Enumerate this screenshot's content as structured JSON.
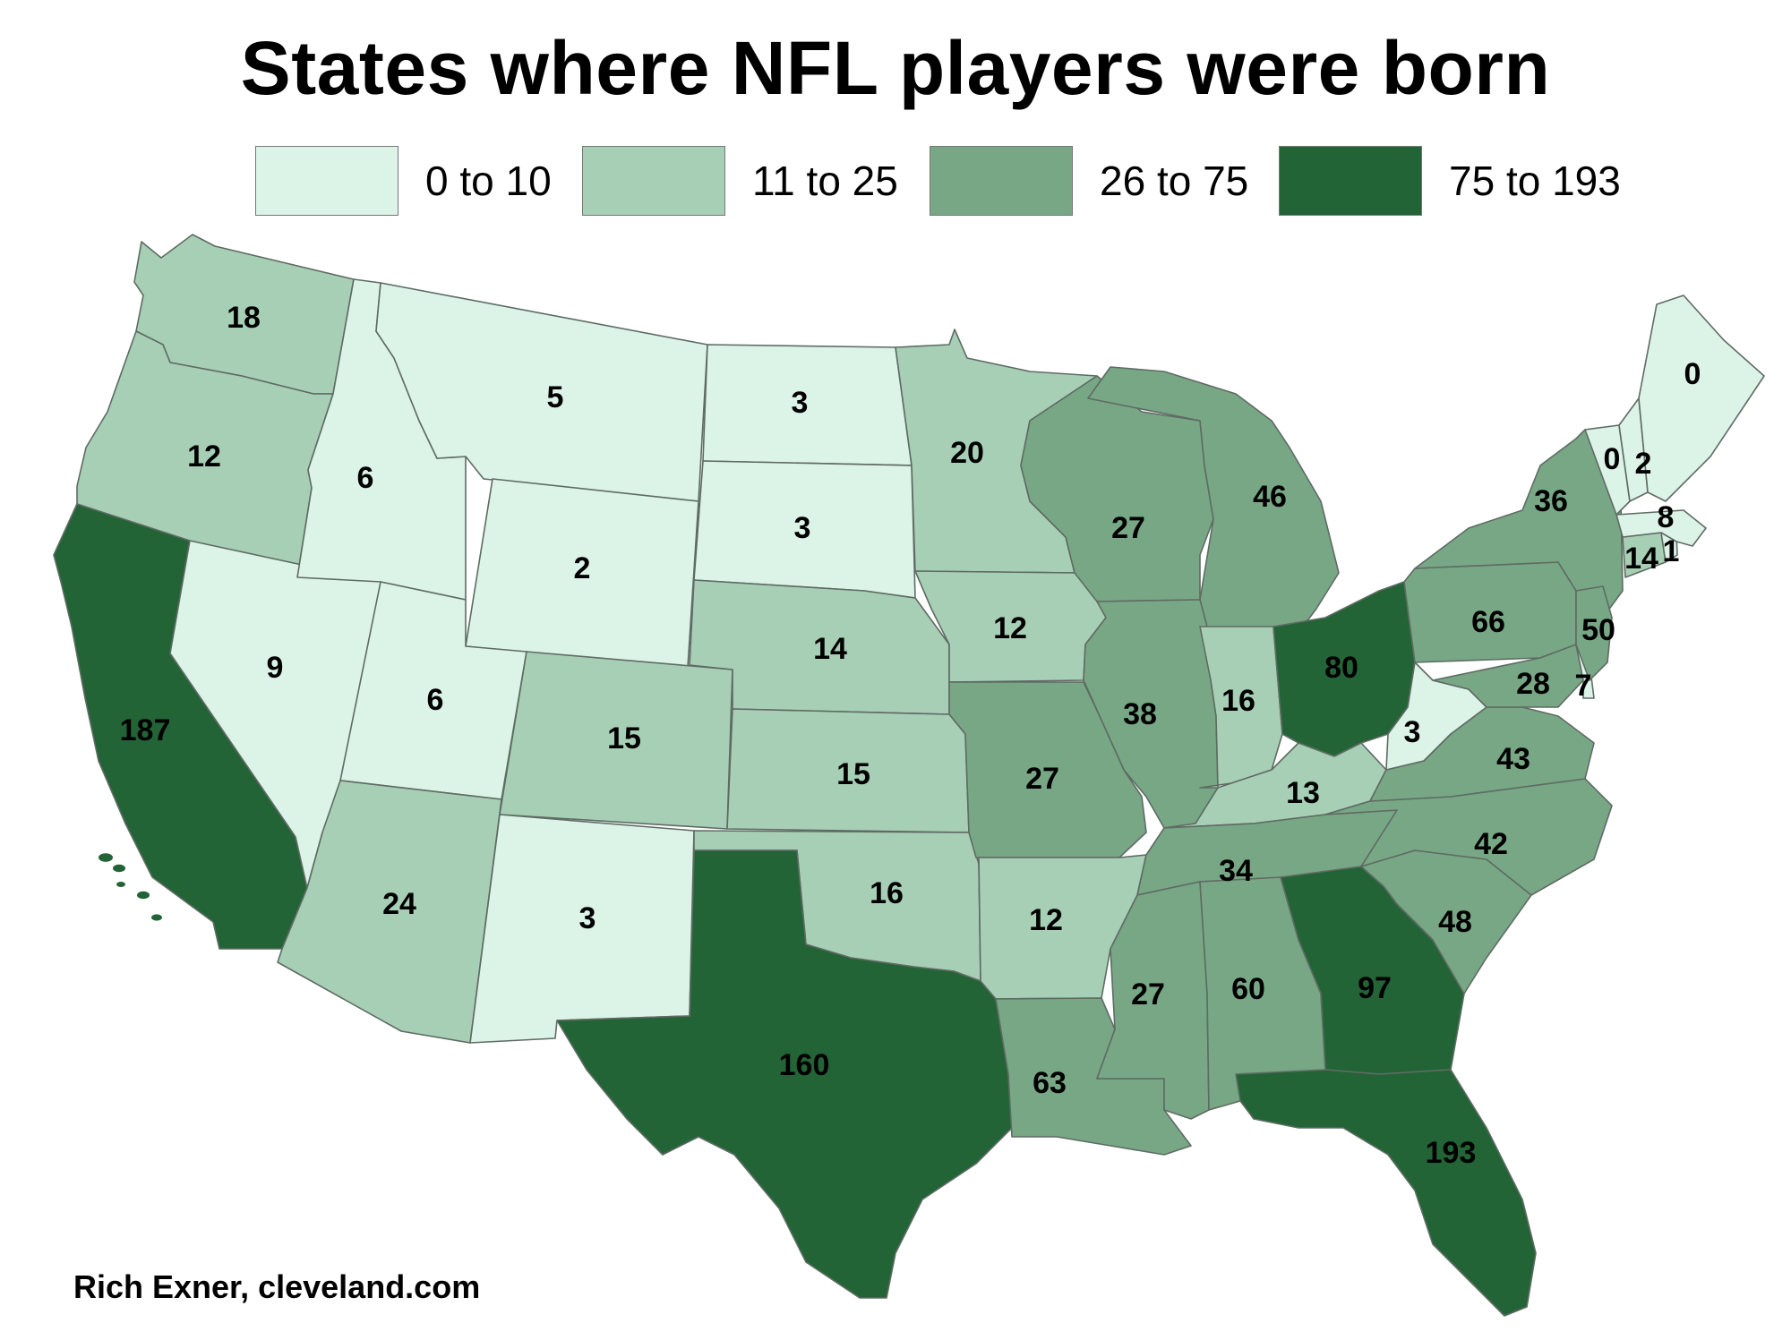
{
  "title": "States where NFL players were born",
  "credit": "Rich Exner, cleveland.com",
  "legend": [
    {
      "label": "0 to 10",
      "color": "#dcf3e8"
    },
    {
      "label": "11 to 25",
      "color": "#a7cfb5"
    },
    {
      "label": "26 to 75",
      "color": "#78a785"
    },
    {
      "label": "75 to 193",
      "color": "#236436"
    }
  ],
  "states": [
    {
      "id": "WA",
      "value": 18,
      "bin": 1
    },
    {
      "id": "OR",
      "value": 12,
      "bin": 1
    },
    {
      "id": "CA",
      "value": 187,
      "bin": 3
    },
    {
      "id": "NV",
      "value": 9,
      "bin": 0
    },
    {
      "id": "ID",
      "value": 6,
      "bin": 0
    },
    {
      "id": "MT",
      "value": 5,
      "bin": 0
    },
    {
      "id": "WY",
      "value": 2,
      "bin": 0
    },
    {
      "id": "UT",
      "value": 6,
      "bin": 0
    },
    {
      "id": "AZ",
      "value": 24,
      "bin": 1
    },
    {
      "id": "CO",
      "value": 15,
      "bin": 1
    },
    {
      "id": "NM",
      "value": 3,
      "bin": 0
    },
    {
      "id": "ND",
      "value": 3,
      "bin": 0
    },
    {
      "id": "SD",
      "value": 3,
      "bin": 0
    },
    {
      "id": "NE",
      "value": 14,
      "bin": 1
    },
    {
      "id": "KS",
      "value": 15,
      "bin": 1
    },
    {
      "id": "OK",
      "value": 16,
      "bin": 1
    },
    {
      "id": "TX",
      "value": 160,
      "bin": 3
    },
    {
      "id": "MN",
      "value": 20,
      "bin": 1
    },
    {
      "id": "IA",
      "value": 12,
      "bin": 1
    },
    {
      "id": "MO",
      "value": 27,
      "bin": 2
    },
    {
      "id": "AR",
      "value": 12,
      "bin": 1
    },
    {
      "id": "LA",
      "value": 63,
      "bin": 2
    },
    {
      "id": "WI",
      "value": 27,
      "bin": 2
    },
    {
      "id": "MI",
      "value": 46,
      "bin": 2
    },
    {
      "id": "IL",
      "value": 38,
      "bin": 2
    },
    {
      "id": "IN",
      "value": 16,
      "bin": 1
    },
    {
      "id": "OH",
      "value": 80,
      "bin": 3
    },
    {
      "id": "KY",
      "value": 13,
      "bin": 1
    },
    {
      "id": "TN",
      "value": 34,
      "bin": 2
    },
    {
      "id": "MS",
      "value": 27,
      "bin": 2
    },
    {
      "id": "AL",
      "value": 60,
      "bin": 2
    },
    {
      "id": "GA",
      "value": 97,
      "bin": 3
    },
    {
      "id": "FL",
      "value": 193,
      "bin": 3
    },
    {
      "id": "SC",
      "value": 48,
      "bin": 2
    },
    {
      "id": "NC",
      "value": 42,
      "bin": 2
    },
    {
      "id": "VA",
      "value": 43,
      "bin": 2
    },
    {
      "id": "WV",
      "value": 3,
      "bin": 0
    },
    {
      "id": "PA",
      "value": 66,
      "bin": 2
    },
    {
      "id": "NY",
      "value": 36,
      "bin": 2
    },
    {
      "id": "MD",
      "value": 28,
      "bin": 2
    },
    {
      "id": "DE",
      "value": 7,
      "bin": 0
    },
    {
      "id": "NJ",
      "value": 50,
      "bin": 2
    },
    {
      "id": "CT",
      "value": 14,
      "bin": 1
    },
    {
      "id": "RI",
      "value": 1,
      "bin": 0
    },
    {
      "id": "MA",
      "value": 8,
      "bin": 0
    },
    {
      "id": "VT",
      "value": 0,
      "bin": 0
    },
    {
      "id": "NH",
      "value": 2,
      "bin": 0
    },
    {
      "id": "ME",
      "value": 0,
      "bin": 0
    }
  ]
}
